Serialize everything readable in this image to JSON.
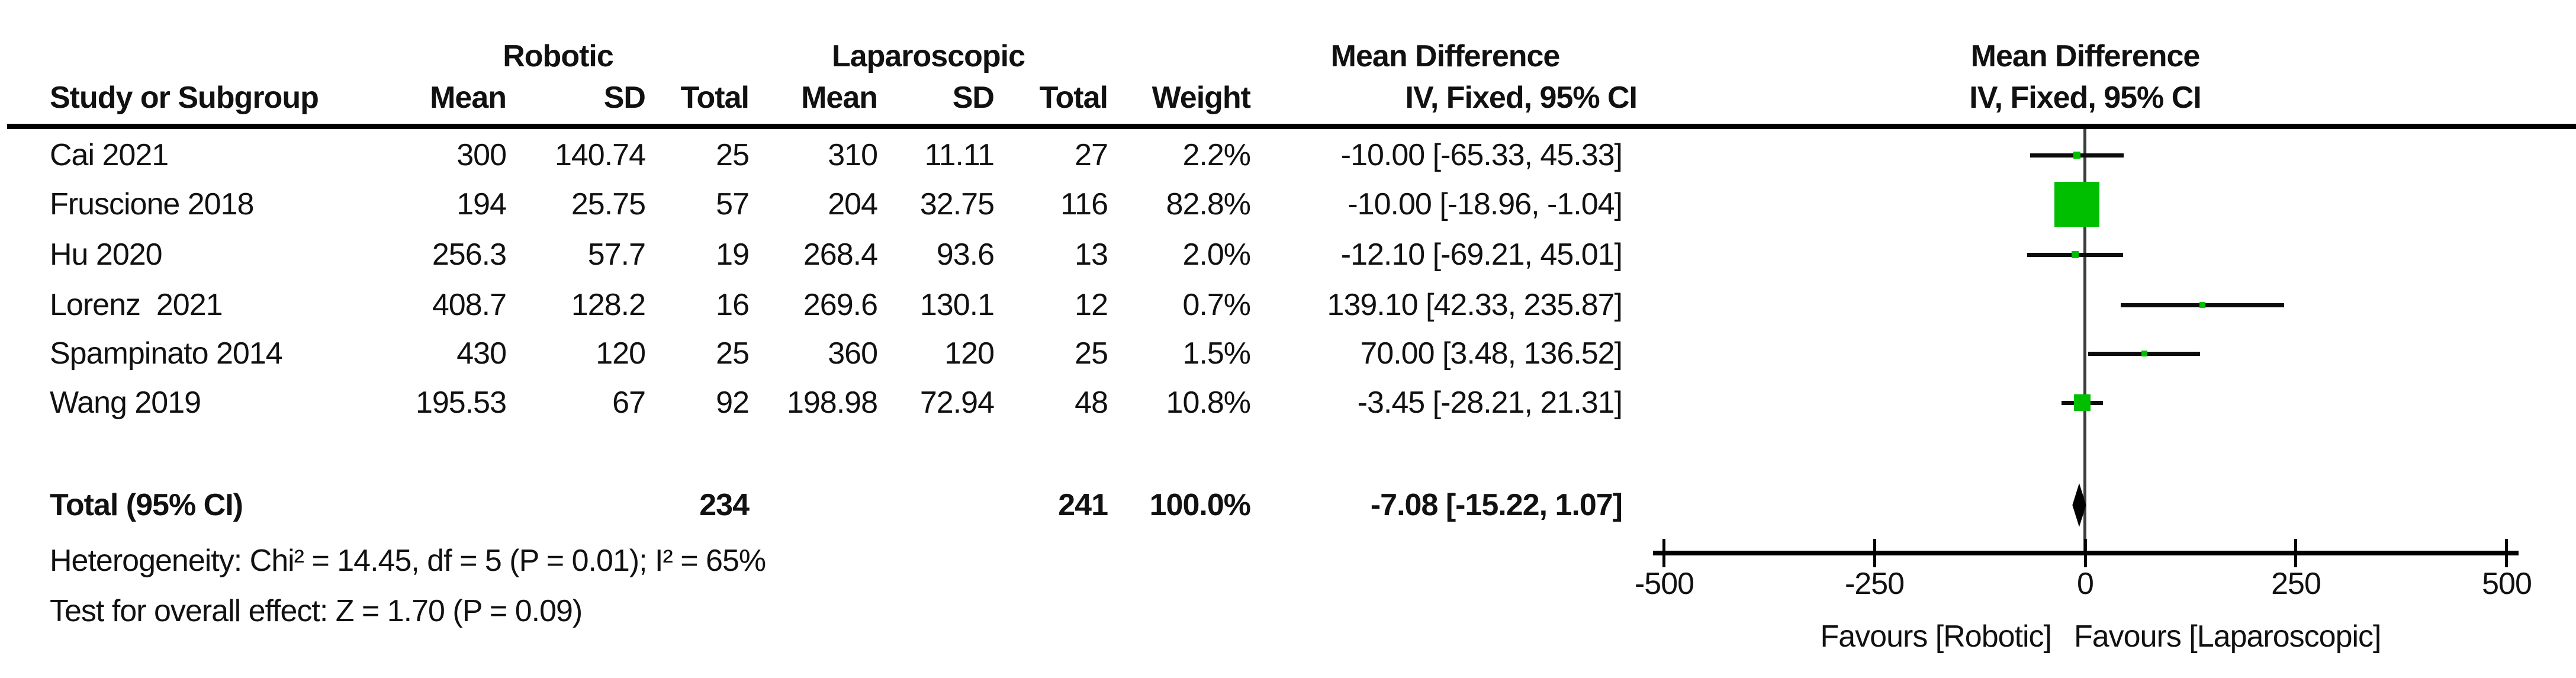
{
  "figure": {
    "group_headers": {
      "robotic": "Robotic",
      "laparoscopic": "Laparoscopic",
      "md_table": "Mean Difference",
      "md_plot": "Mean Difference"
    },
    "col_headers": {
      "study": "Study or Subgroup",
      "mean_r": "Mean",
      "sd_r": "SD",
      "total_r": "Total",
      "mean_l": "Mean",
      "sd_l": "SD",
      "total_l": "Total",
      "weight": "Weight",
      "iv_table": "IV, Fixed, 95% CI",
      "iv_plot": "IV, Fixed, 95% CI"
    },
    "rows": [
      {
        "study": "Cai 2021",
        "mean_r": "300",
        "sd_r": "140.74",
        "total_r": "25",
        "mean_l": "310",
        "sd_l": "11.11",
        "total_l": "27",
        "weight": "2.2%",
        "md_ci": "-10.00 [-65.33, 45.33]"
      },
      {
        "study": "Fruscione 2018",
        "mean_r": "194",
        "sd_r": "25.75",
        "total_r": "57",
        "mean_l": "204",
        "sd_l": "32.75",
        "total_l": "116",
        "weight": "82.8%",
        "md_ci": "-10.00 [-18.96, -1.04]"
      },
      {
        "study": "Hu 2020",
        "mean_r": "256.3",
        "sd_r": "57.7",
        "total_r": "19",
        "mean_l": "268.4",
        "sd_l": "93.6",
        "total_l": "13",
        "weight": "2.0%",
        "md_ci": "-12.10 [-69.21, 45.01]"
      },
      {
        "study": "Lorenz  2021",
        "mean_r": "408.7",
        "sd_r": "128.2",
        "total_r": "16",
        "mean_l": "269.6",
        "sd_l": "130.1",
        "total_l": "12",
        "weight": "0.7%",
        "md_ci": "139.10 [42.33, 235.87]"
      },
      {
        "study": "Spampinato 2014",
        "mean_r": "430",
        "sd_r": "120",
        "total_r": "25",
        "mean_l": "360",
        "sd_l": "120",
        "total_l": "25",
        "weight": "1.5%",
        "md_ci": "70.00 [3.48, 136.52]"
      },
      {
        "study": "Wang 2019",
        "mean_r": "195.53",
        "sd_r": "67",
        "total_r": "92",
        "mean_l": "198.98",
        "sd_l": "72.94",
        "total_l": "48",
        "weight": "10.8%",
        "md_ci": "-3.45 [-28.21, 21.31]"
      }
    ],
    "total_row": {
      "label": "Total (95% CI)",
      "total_r": "234",
      "total_l": "241",
      "weight": "100.0%",
      "md_ci": "-7.08 [-15.22, 1.07]"
    },
    "heterogeneity": "Heterogeneity: Chi² = 14.45, df = 5 (P = 0.01); I² = 65%",
    "overall_effect": "Test for overall effect: Z = 1.70 (P = 0.09)"
  },
  "chart_data": {
    "type": "scatter",
    "subtype": "forest-plot",
    "title": "Mean Difference IV, Fixed, 95% CI",
    "x_axis": {
      "range": [
        -500,
        500
      ],
      "ticks": [
        -500,
        -250,
        0,
        250,
        500
      ],
      "tick_labels": [
        "-500",
        "-250",
        "0",
        "250",
        "500"
      ],
      "label_left": "Favours [Robotic]",
      "label_right": "Favours [Laparoscopic]"
    },
    "studies": [
      {
        "name": "Cai 2021",
        "md": -10.0,
        "ci_low": -65.33,
        "ci_high": 45.33,
        "weight_pct": 2.2
      },
      {
        "name": "Fruscione 2018",
        "md": -10.0,
        "ci_low": -18.96,
        "ci_high": -1.04,
        "weight_pct": 82.8
      },
      {
        "name": "Hu 2020",
        "md": -12.1,
        "ci_low": -69.21,
        "ci_high": 45.01,
        "weight_pct": 2.0
      },
      {
        "name": "Lorenz 2021",
        "md": 139.1,
        "ci_low": 42.33,
        "ci_high": 235.87,
        "weight_pct": 0.7
      },
      {
        "name": "Spampinato 2014",
        "md": 70.0,
        "ci_low": 3.48,
        "ci_high": 136.52,
        "weight_pct": 1.5
      },
      {
        "name": "Wang 2019",
        "md": -3.45,
        "ci_low": -28.21,
        "ci_high": 21.31,
        "weight_pct": 10.8
      }
    ],
    "total": {
      "name": "Total (95% CI)",
      "md": -7.08,
      "ci_low": -15.22,
      "ci_high": 1.07,
      "weight_pct": 100.0
    },
    "marker_color": "#00bf00",
    "diamond_color": "#000000",
    "grid": false,
    "legend": false
  }
}
